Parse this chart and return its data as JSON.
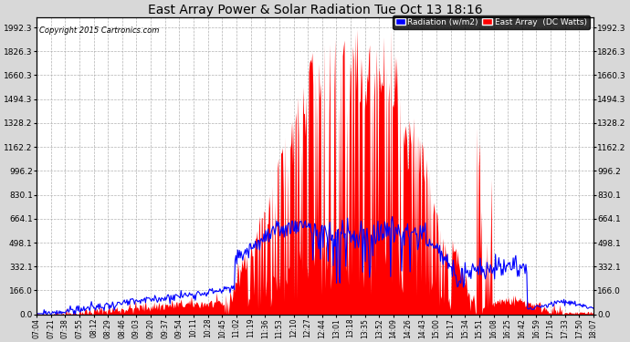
{
  "title": "East Array Power & Solar Radiation Tue Oct 13 18:16",
  "copyright": "Copyright 2015 Cartronics.com",
  "background_color": "#d8d8d8",
  "plot_bg_color": "#ffffff",
  "grid_color": "#aaaaaa",
  "y_ticks": [
    0.0,
    166.0,
    332.1,
    498.1,
    664.1,
    830.1,
    996.2,
    1162.2,
    1328.2,
    1494.3,
    1660.3,
    1826.3,
    1992.3
  ],
  "ylim": [
    0,
    2060
  ],
  "legend_labels": [
    "Radiation (w/m2)",
    "East Array  (DC Watts)"
  ],
  "legend_colors": [
    "#0000ff",
    "#ff0000"
  ],
  "red_fill_color": "#ff0000",
  "blue_line_color": "#0000ff",
  "x_tick_labels": [
    "07:04",
    "07:21",
    "07:38",
    "07:55",
    "08:12",
    "08:29",
    "08:46",
    "09:03",
    "09:20",
    "09:37",
    "09:54",
    "10:11",
    "10:28",
    "10:45",
    "11:02",
    "11:19",
    "11:36",
    "11:53",
    "12:10",
    "12:27",
    "12:44",
    "13:01",
    "13:18",
    "13:35",
    "13:52",
    "14:09",
    "14:26",
    "14:43",
    "15:00",
    "15:17",
    "15:34",
    "15:51",
    "16:08",
    "16:25",
    "16:42",
    "16:59",
    "17:16",
    "17:33",
    "17:50",
    "18:07"
  ]
}
